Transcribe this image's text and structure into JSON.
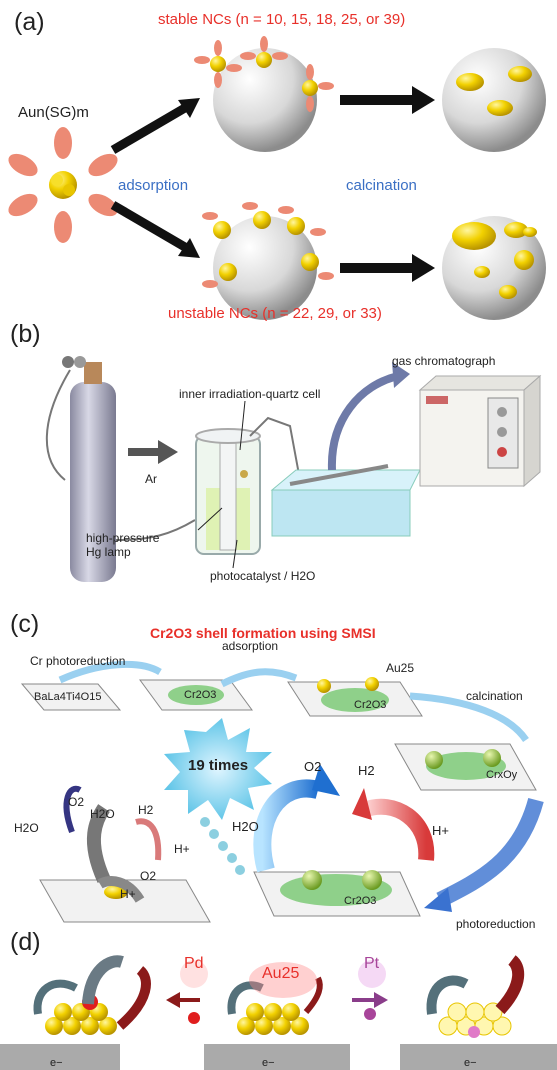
{
  "panels": {
    "a": {
      "label": "(a)",
      "stable": "stable NCs (n = 10, 15, 18, 25, or 39)",
      "unstable": "unstable NCs (n = 22, 29, or 33)",
      "formula": "Aun(SG)m",
      "adsorption": "adsorption",
      "calcination": "calcination"
    },
    "b": {
      "label": "(b)",
      "gc": "gas chromatograph",
      "cell": "inner irradiation-quartz cell",
      "ar": "Ar",
      "lamp1": "high-pressure",
      "lamp2": "Hg lamp",
      "photocat": "photocatalyst / H2O"
    },
    "c": {
      "label": "(c)",
      "title": "Cr2O3 shell formation using SMSI",
      "cr_photo": "Cr photoreduction",
      "adsorption": "adsorption",
      "au25": "Au25",
      "calcination": "calcination",
      "substrate": "BaLa4Ti4O15",
      "cr2o3_a": "Cr2O3",
      "cr2o3_b": "Cr2O3",
      "crxoy": "CrxOy",
      "times": "19 times",
      "h2o": "H2O",
      "o2": "O2",
      "h2": "H2",
      "hplus": "H+",
      "cr2o3_c": "Cr2O3",
      "photoreduction": "photoreduction",
      "left_h2o_a": "H2O",
      "left_h2o_b": "H2O",
      "left_o2_a": "O2",
      "left_h2": "H2",
      "left_hplus_a": "H+",
      "left_o2_b": "O2",
      "left_hplus_b": "H+"
    },
    "d": {
      "label": "(d)",
      "pd": "Pd",
      "au25": "Au25",
      "pt": "Pt",
      "electron": "e−"
    }
  }
}
